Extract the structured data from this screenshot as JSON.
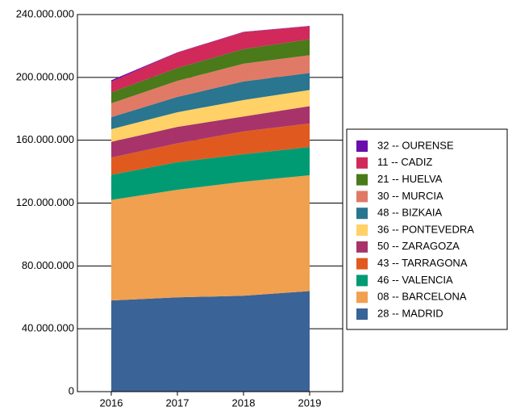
{
  "chart_data": {
    "type": "stacked_area",
    "x": [
      "2016",
      "2017",
      "2018",
      "2019"
    ],
    "ylim": [
      0,
      240000000
    ],
    "yticks": [
      0,
      {
        "value": 40000000,
        "label": "40.000.000"
      },
      {
        "value": 80000000,
        "label": "80.000.000"
      },
      {
        "value": 120000000,
        "label": "120.000.000"
      },
      {
        "value": 160000000,
        "label": "160.000.000"
      },
      {
        "value": 200000000,
        "label": "200.000.000"
      },
      {
        "value": 240000000,
        "label": "240.000.000"
      }
    ],
    "grid": true,
    "legend": "right",
    "series": [
      {
        "name": "28 -- MADRID",
        "color": "#3a6397",
        "values": [
          58000000,
          60000000,
          61000000,
          64000000
        ]
      },
      {
        "name": "08 -- BARCELONA",
        "color": "#f0a04f",
        "values": [
          64000000,
          68500000,
          72600000,
          73700000
        ]
      },
      {
        "name": "46 -- VALENCIA",
        "color": "#009b72",
        "values": [
          16000000,
          17500000,
          17500000,
          18000000
        ]
      },
      {
        "name": "43 -- TARRAGONA",
        "color": "#e05a1f",
        "values": [
          11000000,
          12000000,
          14500000,
          15000000
        ]
      },
      {
        "name": "50 -- ZARAGOZA",
        "color": "#a8336a",
        "values": [
          10000000,
          10500000,
          9500000,
          11000000
        ]
      },
      {
        "name": "36 -- PONTEVEDRA",
        "color": "#ffd166",
        "values": [
          8000000,
          9300000,
          10500000,
          10300000
        ]
      },
      {
        "name": "48 -- BIZKAIA",
        "color": "#2a7590",
        "values": [
          7700000,
          9800000,
          11800000,
          10800000
        ]
      },
      {
        "name": "30 -- MURCIA",
        "color": "#e07a66",
        "values": [
          8800000,
          10200000,
          11300000,
          11300000
        ]
      },
      {
        "name": "21 -- HUELVA",
        "color": "#4a7a1a",
        "values": [
          7000000,
          8200000,
          9300000,
          10200000
        ]
      },
      {
        "name": "11 -- CADIZ",
        "color": "#d0295a",
        "values": [
          6700000,
          9800000,
          10800000,
          8300000
        ]
      },
      {
        "name": "32 -- OURENSE",
        "color": "#6a0dad",
        "values": [
          1000000,
          200000,
          200000,
          200000
        ]
      }
    ]
  }
}
